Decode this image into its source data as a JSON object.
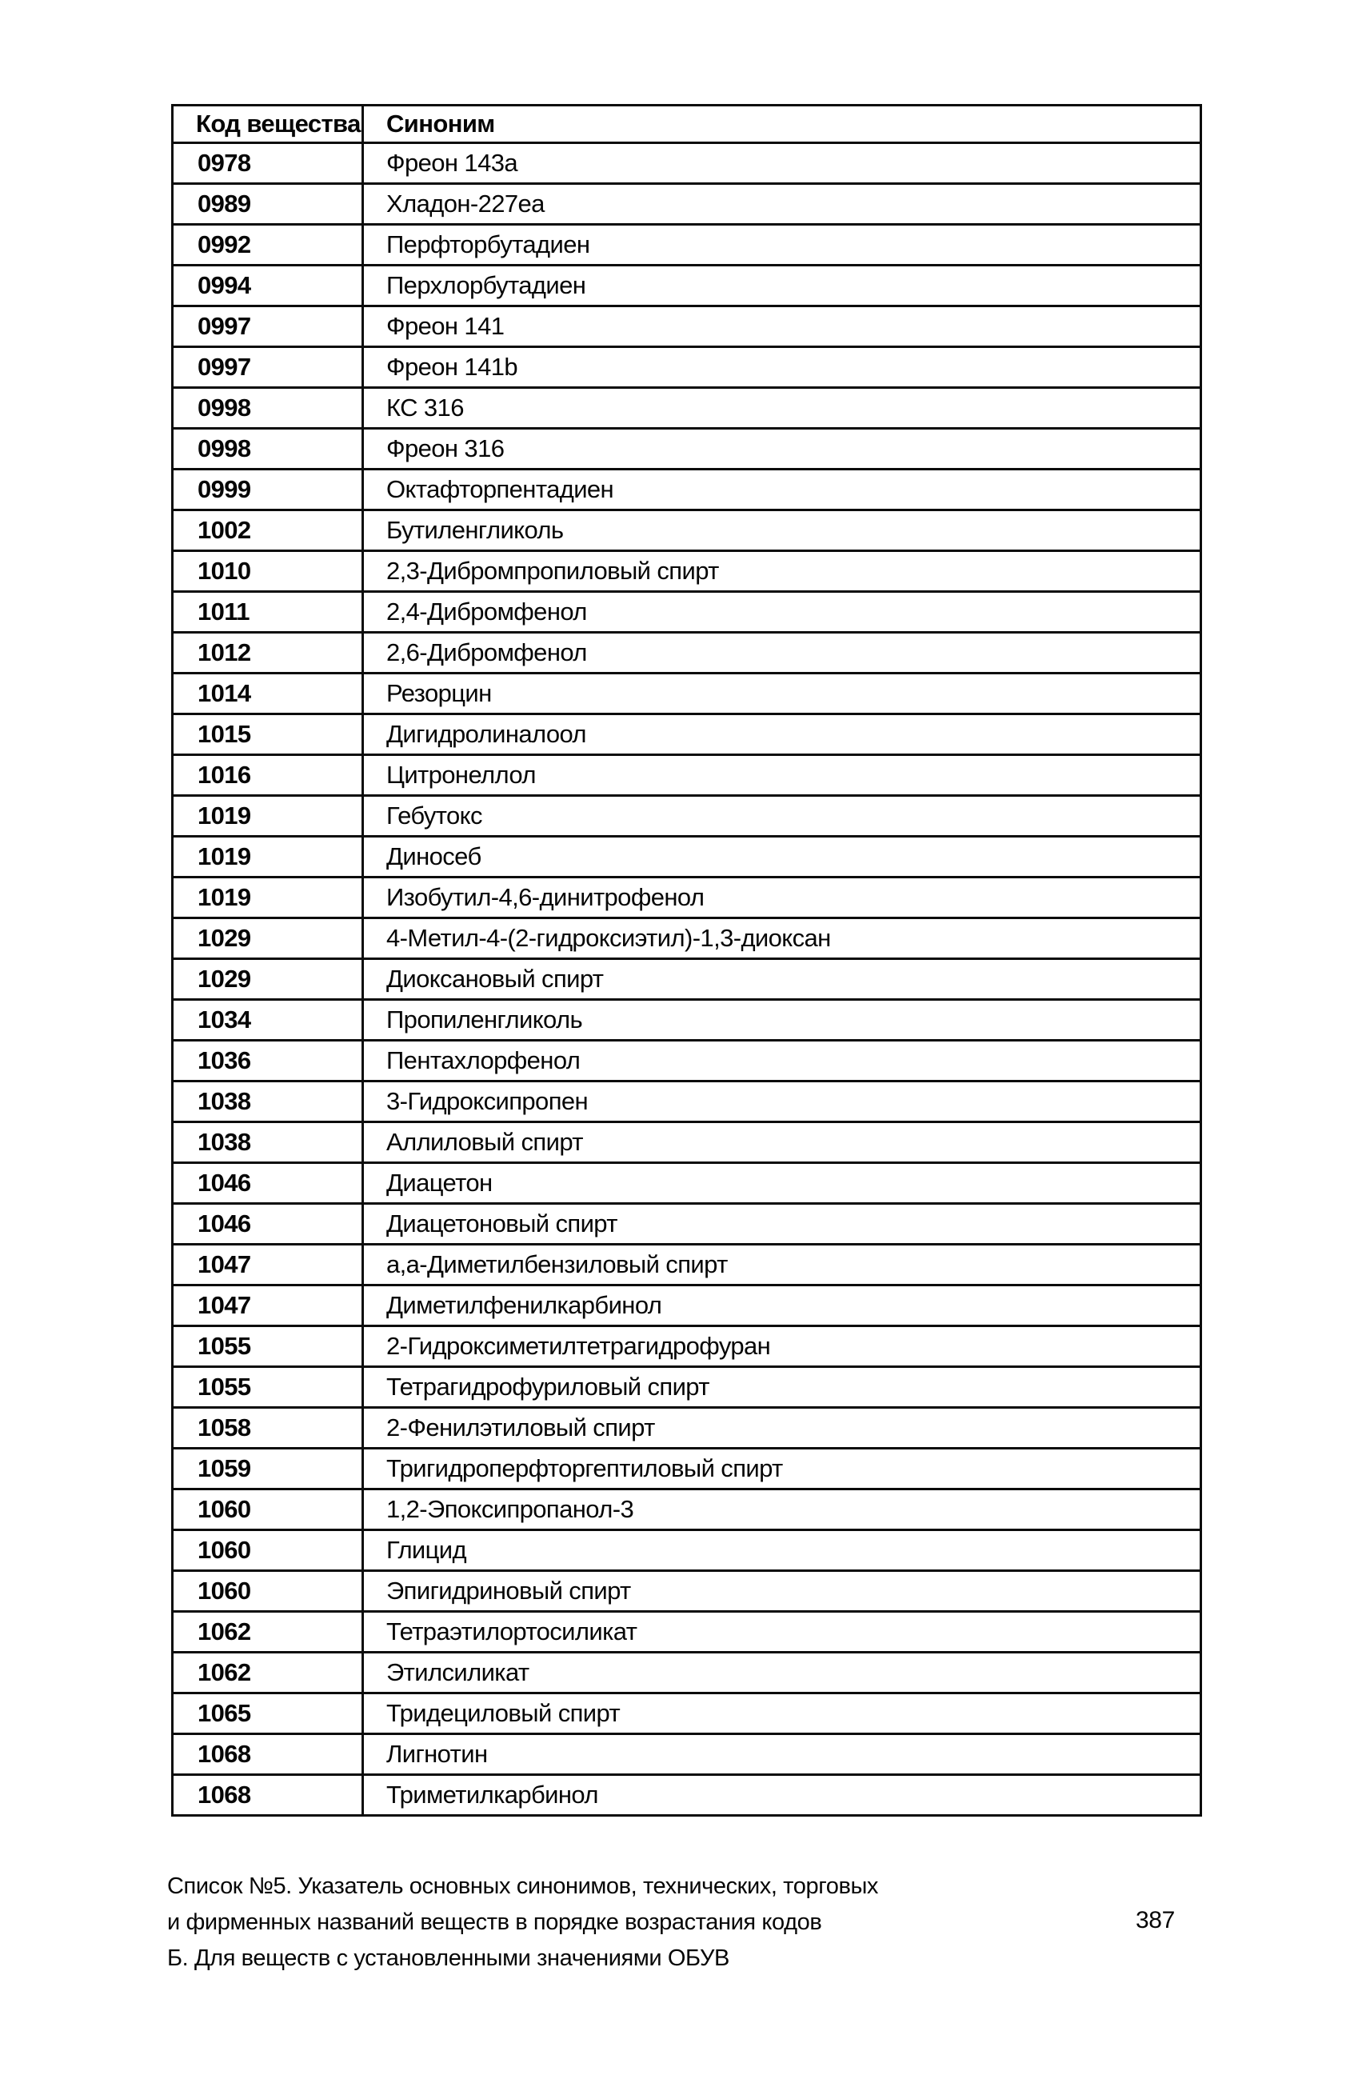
{
  "table": {
    "columns": [
      "Код вещества",
      "Синоним"
    ],
    "rows": [
      [
        "0978",
        "Фреон 143а"
      ],
      [
        "0989",
        "Хладон-227еа"
      ],
      [
        "0992",
        "Перфторбутадиен"
      ],
      [
        "0994",
        "Перхлорбутадиен"
      ],
      [
        "0997",
        "Фреон 141"
      ],
      [
        "0997",
        "Фреон 141b"
      ],
      [
        "0998",
        "КС 316"
      ],
      [
        "0998",
        "Фреон 316"
      ],
      [
        "0999",
        "Октафторпентадиен"
      ],
      [
        "1002",
        "Бутиленгликоль"
      ],
      [
        "1010",
        "2,3-Дибромпропиловый спирт"
      ],
      [
        "1011",
        "2,4-Дибромфенол"
      ],
      [
        "1012",
        "2,6-Дибромфенол"
      ],
      [
        "1014",
        "Резорцин"
      ],
      [
        "1015",
        "Дигидролиналоол"
      ],
      [
        "1016",
        "Цитронеллол"
      ],
      [
        "1019",
        "Гебутокс"
      ],
      [
        "1019",
        "Диносеб"
      ],
      [
        "1019",
        "Изобутил-4,6-динитрофенол"
      ],
      [
        "1029",
        "4-Метил-4-(2-гидроксиэтил)-1,3-диоксан"
      ],
      [
        "1029",
        "Диоксановый спирт"
      ],
      [
        "1034",
        "Пропиленгликоль"
      ],
      [
        "1036",
        "Пентахлорфенол"
      ],
      [
        "1038",
        "3-Гидроксипропен"
      ],
      [
        "1038",
        "Аллиловый спирт"
      ],
      [
        "1046",
        "Диацетон"
      ],
      [
        "1046",
        "Диацетоновый спирт"
      ],
      [
        "1047",
        "а,а-Диметилбензиловый спирт"
      ],
      [
        "1047",
        "Диметилфенилкарбинол"
      ],
      [
        "1055",
        "2-Гидроксиметилтетрагидрофуран"
      ],
      [
        "1055",
        "Тетрагидрофуриловый спирт"
      ],
      [
        "1058",
        "2-Фенилэтиловый спирт"
      ],
      [
        "1059",
        "Тригидроперфторгептиловый спирт"
      ],
      [
        "1060",
        "1,2-Эпоксипропанол-3"
      ],
      [
        "1060",
        "Глицид"
      ],
      [
        "1060",
        "Эпигидриновый спирт"
      ],
      [
        "1062",
        "Тетраэтилортосиликат"
      ],
      [
        "1062",
        "Этилсиликат"
      ],
      [
        "1065",
        "Тридециловый спирт"
      ],
      [
        "1068",
        "Лигнотин"
      ],
      [
        "1068",
        "Триметилкарбинол"
      ]
    ]
  },
  "caption": {
    "line1": "Список №5. Указатель основных синонимов, технических, торговых",
    "line2": "и фирменных названий веществ в порядке возрастания кодов",
    "line3": "Б. Для веществ с установленными значениями ОБУВ"
  },
  "page_number": "387",
  "colors": {
    "text": "#060606",
    "background": "#ffffff",
    "border": "#0b0b0b"
  }
}
